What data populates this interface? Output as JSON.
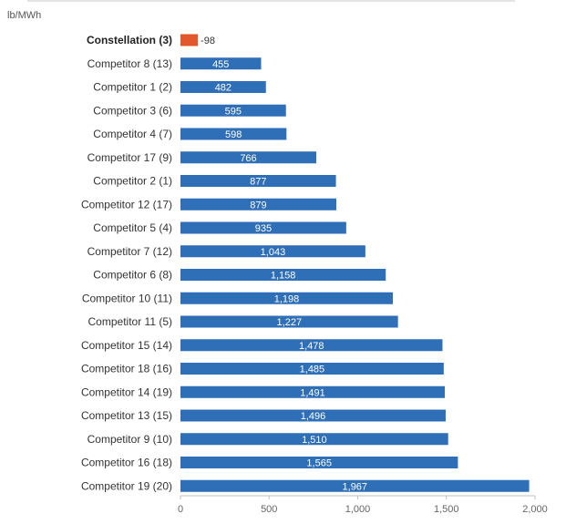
{
  "chart_data": {
    "type": "bar",
    "orientation": "horizontal",
    "unit_label": "lb/MWh",
    "categories": [
      "Constellation (3)",
      "Competitor 8 (13)",
      "Competitor 1 (2)",
      "Competitor 3 (6)",
      "Competitor 4 (7)",
      "Competitor 17 (9)",
      "Competitor 2 (1)",
      "Competitor 12 (17)",
      "Competitor 5 (4)",
      "Competitor 7 (12)",
      "Competitor 6 (8)",
      "Competitor 10 (11)",
      "Competitor 11 (5)",
      "Competitor 15 (14)",
      "Competitor 18 (16)",
      "Competitor 14 (19)",
      "Competitor 13 (15)",
      "Competitor 9 (10)",
      "Competitor 16 (18)",
      "Competitor 19 (20)"
    ],
    "values": [
      98,
      455,
      482,
      595,
      598,
      766,
      877,
      879,
      935,
      1043,
      1158,
      1198,
      1227,
      1478,
      1485,
      1491,
      1496,
      1510,
      1565,
      1967
    ],
    "value_labels": [
      "98",
      "455",
      "482",
      "595",
      "598",
      "766",
      "877",
      "879",
      "935",
      "1,043",
      "1,158",
      "1,198",
      "1,227",
      "1,478",
      "1,485",
      "1,491",
      "1,496",
      "1,510",
      "1,565",
      "1,967"
    ],
    "highlight_index": 0,
    "xlim": [
      0,
      2000
    ],
    "x_ticks": [
      0,
      500,
      1000,
      1500,
      2000
    ],
    "x_tick_labels": [
      "0",
      "500",
      "1,000",
      "1,500",
      "2,000"
    ],
    "grid": false,
    "colors": {
      "bar": "#2e6fb7",
      "highlight": "#e2572b"
    }
  }
}
